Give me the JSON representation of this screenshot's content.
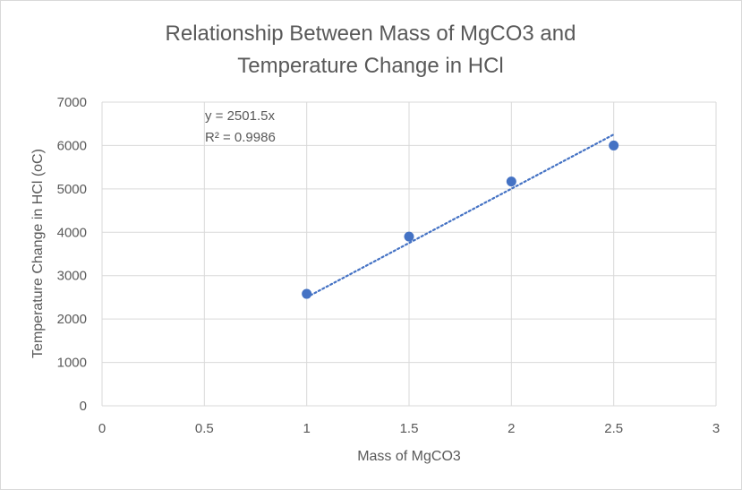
{
  "chart_data": {
    "type": "scatter",
    "title_lines": [
      "Relationship Between Mass of MgCO3 and",
      "Temperature  Change in HCl"
    ],
    "xlabel": "Mass of MgCO3",
    "ylabel": "Temperature Change in HCl (oC)",
    "xlim": [
      0,
      3
    ],
    "ylim": [
      0,
      7000
    ],
    "x_ticks": [
      0,
      0.5,
      1,
      1.5,
      2,
      2.5,
      3
    ],
    "y_ticks": [
      0,
      1000,
      2000,
      3000,
      4000,
      5000,
      6000,
      7000
    ],
    "grid": true,
    "series": [
      {
        "x": [
          1,
          1.5,
          2,
          2.5
        ],
        "y": [
          2580,
          3900,
          5170,
          6000
        ],
        "color": "#4472c4"
      }
    ],
    "trendline": {
      "slope": 2501.5,
      "x_range": [
        1,
        2.5
      ],
      "style": "dotted",
      "color": "#4472c4",
      "equation": "y = 2501.5x",
      "r_squared": "R² = 0.9986"
    }
  }
}
